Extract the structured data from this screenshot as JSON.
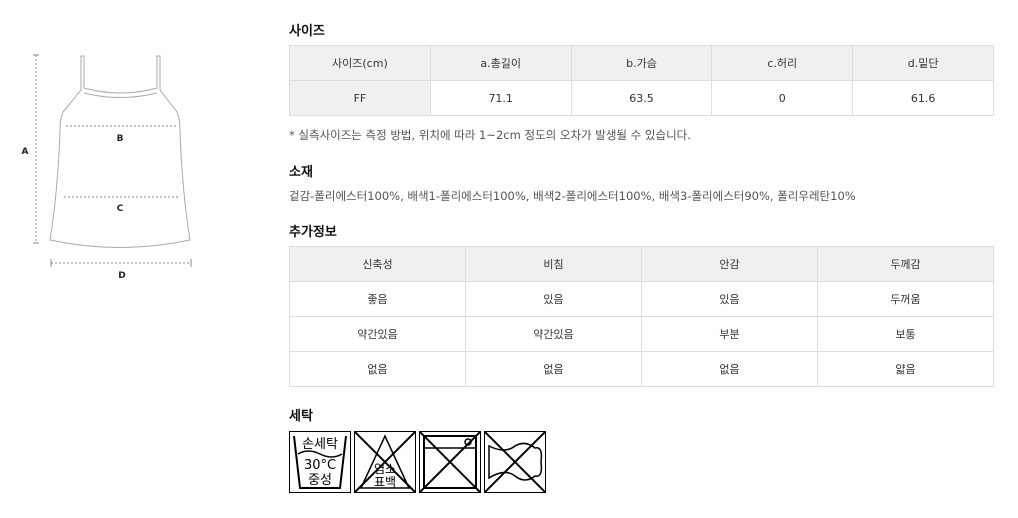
{
  "diagram": {
    "labels": [
      "A",
      "B",
      "C",
      "D"
    ]
  },
  "size": {
    "title": "사이즈",
    "headers": [
      "사이즈(cm)",
      "a.총길이",
      "b.가슴",
      "c.허리",
      "d.밑단"
    ],
    "rows": [
      [
        "FF",
        "71.1",
        "63.5",
        "0",
        "61.6"
      ]
    ],
    "note": "* 실측사이즈는 측정 방법, 위치에 따라 1~2cm 정도의 오차가 발생될 수 있습니다."
  },
  "material": {
    "title": "소재",
    "text": "겉감-폴리에스터100%, 배색1-폴리에스터100%, 배색2-폴리에스터100%, 배색3-폴리에스터90%, 폴리우레탄10%"
  },
  "extra": {
    "title": "추가정보",
    "headers": [
      "신축성",
      "비침",
      "안감",
      "두께감"
    ],
    "rows": [
      [
        "좋음",
        "있음",
        "있음",
        "두꺼움"
      ],
      [
        "약간있음",
        "약간있음",
        "부분",
        "보통"
      ],
      [
        "없음",
        "없음",
        "없음",
        "얇음"
      ]
    ]
  },
  "wash": {
    "title": "세탁",
    "icons": [
      {
        "name": "hand-wash-icon",
        "lines": [
          "손세탁",
          "30°C",
          "중성"
        ]
      },
      {
        "name": "no-bleach-icon",
        "lines": [
          "염소",
          "표백"
        ]
      },
      {
        "name": "no-tumble-dry-icon"
      },
      {
        "name": "no-wring-icon"
      }
    ]
  }
}
